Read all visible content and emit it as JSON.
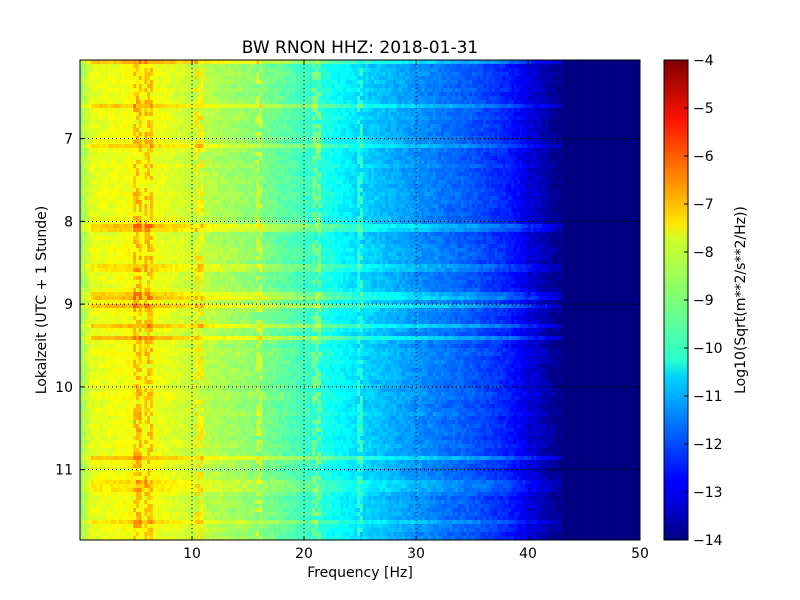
{
  "chart_data": {
    "type": "heatmap",
    "title": "BW RNON HHZ: 2018-01-31",
    "xlabel": "Frequency [Hz]",
    "ylabel": "Lokalzeit (UTC + 1 Stunde)",
    "colorbar_label": "Log10(Sqrt(m**2/s**2/Hz))",
    "colormap": "jet",
    "xlim": [
      0,
      50
    ],
    "ylim": [
      11.85,
      6.05
    ],
    "y_inverted": true,
    "grid": true,
    "x_ticks": [
      {
        "value": 10,
        "label": "10"
      },
      {
        "value": 20,
        "label": "20"
      },
      {
        "value": 30,
        "label": "30"
      },
      {
        "value": 40,
        "label": "40"
      },
      {
        "value": 50,
        "label": "50"
      }
    ],
    "y_ticks": [
      {
        "value": 7,
        "label": "7"
      },
      {
        "value": 8,
        "label": "8"
      },
      {
        "value": 9,
        "label": "9"
      },
      {
        "value": 10,
        "label": "10"
      },
      {
        "value": 11,
        "label": "11"
      }
    ],
    "colorbar_range": [
      -14,
      -4
    ],
    "colorbar_ticks": [
      {
        "value": -4,
        "label": "−4"
      },
      {
        "value": -5,
        "label": "−5"
      },
      {
        "value": -6,
        "label": "−6"
      },
      {
        "value": -7,
        "label": "−7"
      },
      {
        "value": -8,
        "label": "−8"
      },
      {
        "value": -9,
        "label": "−9"
      },
      {
        "value": -10,
        "label": "−10"
      },
      {
        "value": -11,
        "label": "−11"
      },
      {
        "value": -12,
        "label": "−12"
      },
      {
        "value": -13,
        "label": "−13"
      },
      {
        "value": -14,
        "label": "−14"
      }
    ],
    "frequency_profile": {
      "frequency": [
        0,
        1,
        3,
        5,
        8,
        10,
        15,
        20,
        25,
        30,
        35,
        38,
        40,
        41.5,
        42.5,
        43.5,
        50
      ],
      "value": [
        -8.8,
        -8.0,
        -7.9,
        -7.8,
        -8.0,
        -8.3,
        -8.8,
        -9.6,
        -10.6,
        -11.3,
        -11.9,
        -12.4,
        -13.0,
        -13.5,
        -13.85,
        -14.0,
        -14.0
      ]
    },
    "spectral_lines_hz": [
      5.2,
      6.2,
      10.6,
      16.0,
      21.2,
      25.0
    ]
  }
}
